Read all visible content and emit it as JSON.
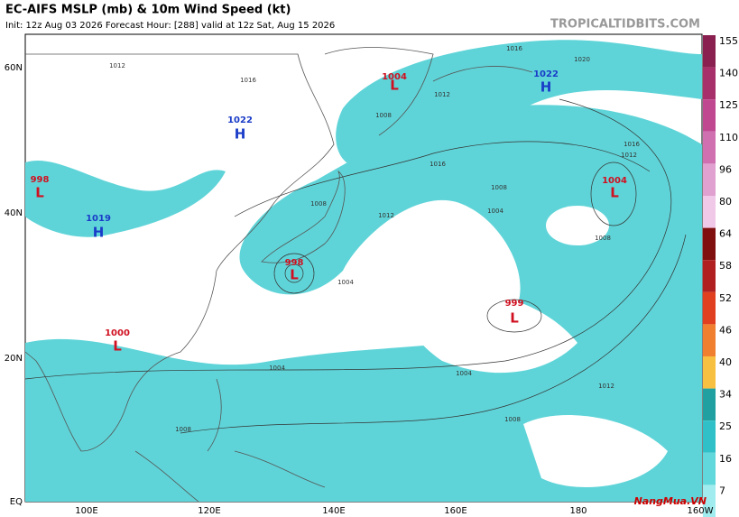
{
  "header": {
    "title": "EC-AIFS MSLP (mb) & 10m Wind Speed (kt)",
    "subtitle": "Init: 12z Aug 03 2026   Forecast Hour: [288]   valid at 12z Sat, Aug 15 2026",
    "credit": "TROPICALTIDBITS.COM"
  },
  "axes": {
    "lat": [
      "60N",
      "40N",
      "20N",
      "EQ"
    ],
    "lon": [
      "100E",
      "120E",
      "140E",
      "160E",
      "180",
      "160W"
    ]
  },
  "colorbar": {
    "ticks": [
      155,
      140,
      125,
      110,
      96,
      80,
      64,
      58,
      52,
      46,
      40,
      34,
      25,
      16,
      7
    ]
  },
  "centers": [
    {
      "letter": "L",
      "pressure": 1004
    },
    {
      "letter": "H",
      "pressure": 1022
    },
    {
      "letter": "H",
      "pressure": 1022
    },
    {
      "letter": "L",
      "pressure": 998
    },
    {
      "letter": "H",
      "pressure": 1019
    },
    {
      "letter": "L",
      "pressure": 998
    },
    {
      "letter": "L",
      "pressure": 1004
    },
    {
      "letter": "L",
      "pressure": 999
    },
    {
      "letter": "L",
      "pressure": 1000
    }
  ],
  "isobar_labels": [
    1016,
    1020,
    1012,
    1016,
    1012,
    1008,
    1016,
    1008,
    1004,
    1012,
    1008,
    1004,
    1004,
    1004,
    1012,
    1008,
    1008,
    1016,
    1012,
    1008
  ],
  "watermark": "NangMua.VN"
}
